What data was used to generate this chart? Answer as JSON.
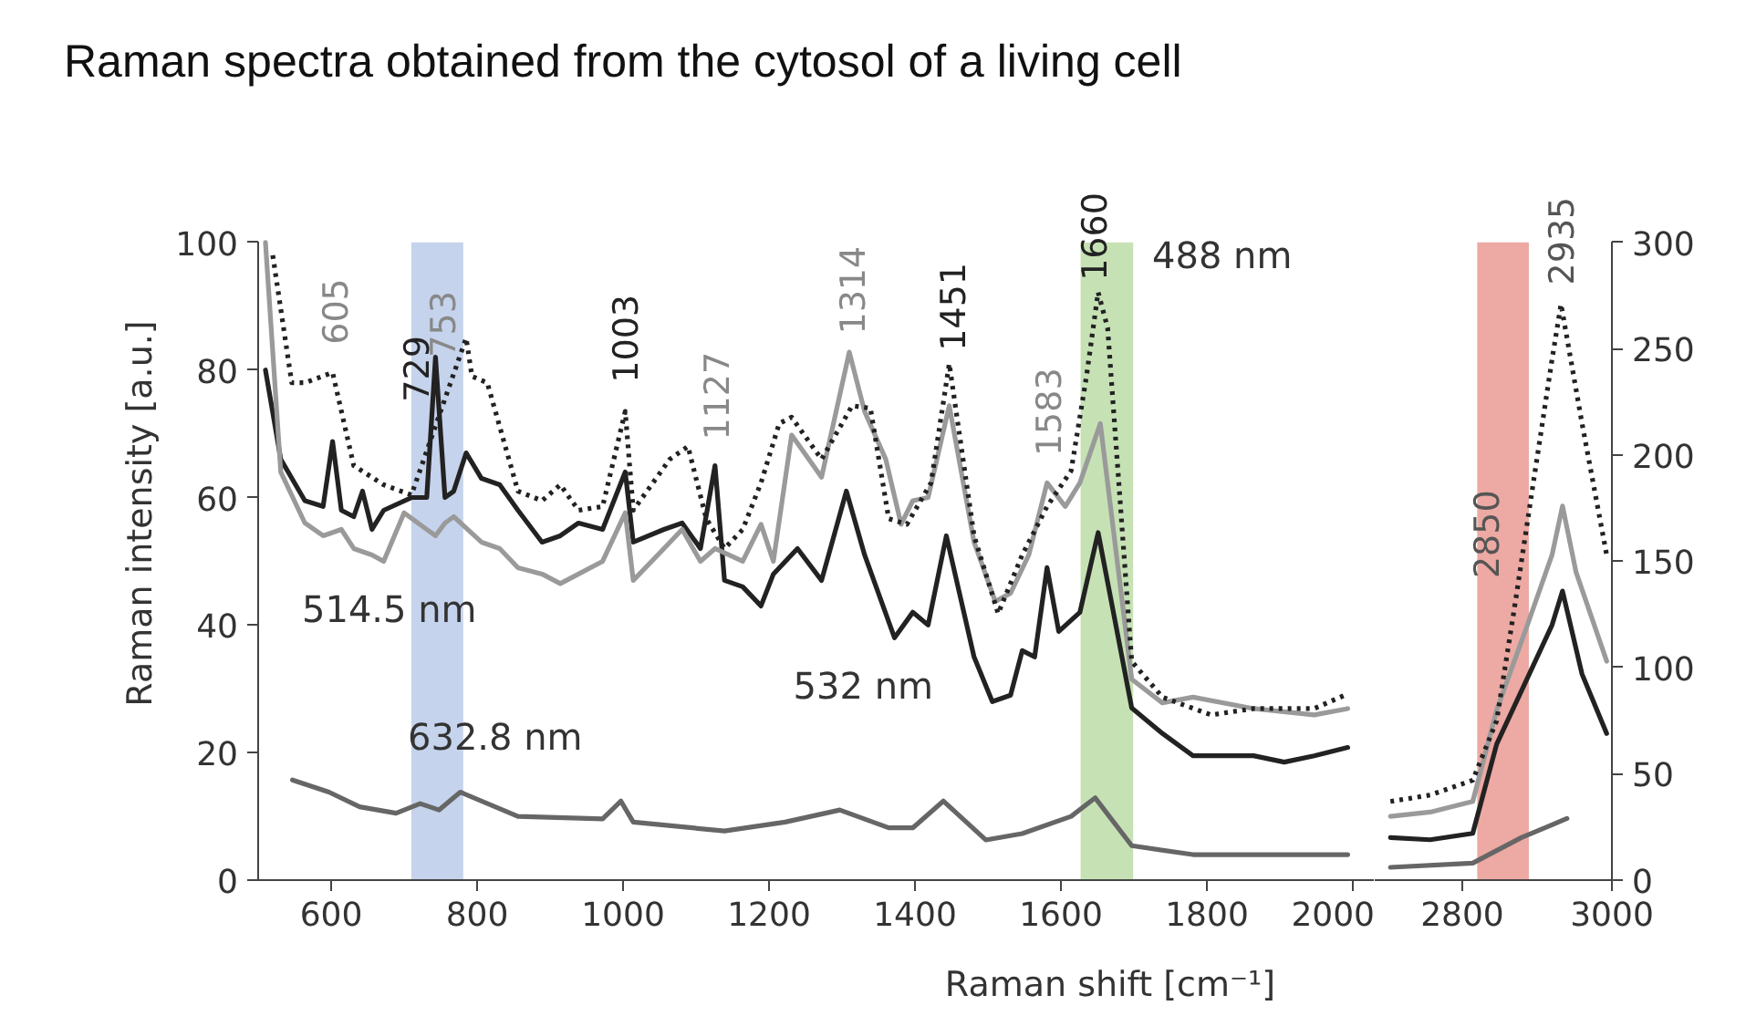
{
  "chart_data": [
    {
      "type": "line",
      "title": "Raman spectra obtained from the cytosol of a living cell",
      "xlabel": "Raman shift [cm⁻¹]",
      "ylabel": "Raman intensity [a.u.]",
      "xlim": [
        500,
        2030
      ],
      "xticks": [
        600,
        800,
        1000,
        1200,
        1400,
        1600,
        1800,
        2000
      ],
      "ylim": [
        0,
        100
      ],
      "yticks": [
        0,
        20,
        40,
        60,
        80,
        100
      ],
      "grid": false,
      "marker": "none",
      "series": [
        {
          "name": "532 nm",
          "color": "#222222",
          "line_style": "solid",
          "x": [
            510,
            531,
            564,
            589,
            602,
            614,
            631,
            643,
            656,
            672,
            710,
            731,
            743,
            756,
            768,
            785,
            806,
            831,
            856,
            889,
            914,
            939,
            972,
            1003,
            1014,
            1056,
            1081,
            1106,
            1126,
            1139,
            1164,
            1189,
            1206,
            1239,
            1272,
            1306,
            1331,
            1372,
            1397,
            1418,
            1443,
            1481,
            1506,
            1531,
            1547,
            1564,
            1581,
            1597,
            1626,
            1651,
            1697,
            1739,
            1781,
            1864,
            1906,
            1947,
            1993
          ],
          "values": [
            80,
            66,
            59.5,
            58.6,
            68.8,
            58,
            57,
            61,
            55,
            58,
            60,
            60,
            82,
            60,
            61,
            67,
            63,
            62,
            58,
            53,
            54,
            56,
            55,
            64,
            53,
            55,
            56,
            52,
            65,
            47,
            46,
            43,
            48,
            52,
            47,
            61,
            51,
            38,
            42,
            40,
            54,
            35,
            28,
            29,
            36,
            35,
            49,
            39,
            42,
            54.5,
            27,
            23,
            19.5,
            19.5,
            18.5,
            19.5,
            20.8
          ]
        },
        {
          "name": "514.5 nm",
          "color": "#9a9a9a",
          "line_style": "solid",
          "x": [
            510,
            531,
            564,
            589,
            614,
            631,
            656,
            672,
            700,
            731,
            743,
            756,
            768,
            806,
            831,
            856,
            889,
            914,
            939,
            972,
            1003,
            1014,
            1056,
            1081,
            1106,
            1126,
            1164,
            1189,
            1206,
            1231,
            1272,
            1310,
            1331,
            1360,
            1381,
            1397,
            1418,
            1447,
            1481,
            1510,
            1531,
            1556,
            1581,
            1606,
            1626,
            1654,
            1697,
            1739,
            1781,
            1864,
            1947,
            1993
          ],
          "values": [
            100,
            64,
            56,
            54,
            55,
            52,
            51,
            50,
            57.6,
            55,
            54,
            56,
            57,
            53,
            52,
            49,
            48,
            46.5,
            48,
            50,
            57.6,
            47,
            52,
            55,
            50,
            52,
            50,
            55.8,
            50,
            69.8,
            63.2,
            82.8,
            73.5,
            66,
            55.8,
            59.5,
            60,
            74.4,
            53,
            43.7,
            45,
            51,
            62.3,
            58.6,
            62.3,
            71.6,
            31.5,
            27.8,
            28.7,
            26.9,
            25.9,
            26.9
          ]
        },
        {
          "name": "488 nm",
          "color": "#222222",
          "line_style": "dotted",
          "x": [
            520,
            546,
            564,
            602,
            631,
            672,
            710,
            785,
            793,
            814,
            856,
            889,
            914,
            939,
            972,
            1003,
            1014,
            1064,
            1089,
            1114,
            1139,
            1164,
            1189,
            1214,
            1231,
            1272,
            1314,
            1339,
            1364,
            1389,
            1422,
            1447,
            1481,
            1514,
            1547,
            1581,
            1614,
            1635,
            1651,
            1664,
            1697,
            1739,
            1806,
            1864,
            1947,
            1993
          ],
          "values": [
            98,
            78,
            78,
            79.6,
            65,
            62,
            60.4,
            85,
            79,
            78,
            61,
            59.5,
            62,
            58,
            58.6,
            73.5,
            58,
            66,
            68,
            56.7,
            52,
            55,
            62.3,
            71.6,
            72.6,
            66,
            74.4,
            74,
            56.7,
            55.8,
            62.3,
            81,
            54,
            41.8,
            51,
            58.6,
            64.2,
            79,
            92.2,
            86.6,
            34.3,
            28.7,
            25.9,
            26.9,
            26.9,
            29.2
          ]
        },
        {
          "name": "632.8 nm",
          "color": "#666666",
          "line_style": "solid",
          "x": [
            547,
            597,
            639,
            689,
            722,
            748,
            777,
            856,
            972,
            997,
            1014,
            1139,
            1222,
            1297,
            1364,
            1397,
            1439,
            1497,
            1547,
            1614,
            1647,
            1697,
            1781,
            1993
          ],
          "values": [
            15.7,
            13.8,
            11.5,
            10.5,
            12,
            11,
            13.8,
            10,
            9.6,
            12.4,
            9.1,
            7.7,
            9.1,
            11,
            8.2,
            8.2,
            12.4,
            6.3,
            7.3,
            10,
            12.9,
            5.4,
            4,
            4
          ]
        }
      ],
      "bands": [
        {
          "axis": "x",
          "from": 710,
          "to": 781,
          "color": "#c5d3ec"
        },
        {
          "axis": "x",
          "from": 1627,
          "to": 1699,
          "color": "#c6e2b5"
        }
      ],
      "annotations": [
        "605",
        "729",
        "753",
        "1003",
        "1127",
        "1314",
        "1451",
        "1583",
        "1660"
      ]
    },
    {
      "type": "line",
      "xlim": [
        2683,
        3000
      ],
      "xticks": [
        2800,
        3000
      ],
      "ylim": [
        0,
        300
      ],
      "yticks": [
        0,
        50,
        100,
        150,
        200,
        250,
        300
      ],
      "grid": false,
      "marker": "none",
      "series": [
        {
          "color": "#222222",
          "line_style": "solid",
          "x": [
            2704,
            2757,
            2814,
            2846,
            2887,
            2920,
            2934,
            2960,
            2993
          ],
          "values": [
            20,
            19,
            22,
            64,
            95,
            120,
            136,
            97,
            69
          ]
        },
        {
          "color": "#9a9a9a",
          "line_style": "solid",
          "x": [
            2704,
            2757,
            2814,
            2846,
            2887,
            2920,
            2934,
            2952,
            2993
          ],
          "values": [
            30,
            32,
            37,
            80,
            120,
            153,
            176,
            145,
            103
          ]
        },
        {
          "color": "#222222",
          "line_style": "dotted",
          "x": [
            2704,
            2757,
            2814,
            2846,
            2871,
            2895,
            2920,
            2932,
            2960,
            2993
          ],
          "values": [
            37,
            40,
            47,
            75,
            131,
            187,
            245,
            271,
            215,
            153
          ]
        },
        {
          "color": "#666666",
          "line_style": "solid",
          "x": [
            2704,
            2814,
            2879,
            2920,
            2940
          ],
          "values": [
            6,
            8,
            20,
            26,
            29
          ]
        }
      ],
      "bands": [
        {
          "axis": "x",
          "from": 2820,
          "to": 2889,
          "color": "#eda9a3"
        }
      ],
      "annotations": [
        "2850",
        "2935"
      ]
    }
  ]
}
